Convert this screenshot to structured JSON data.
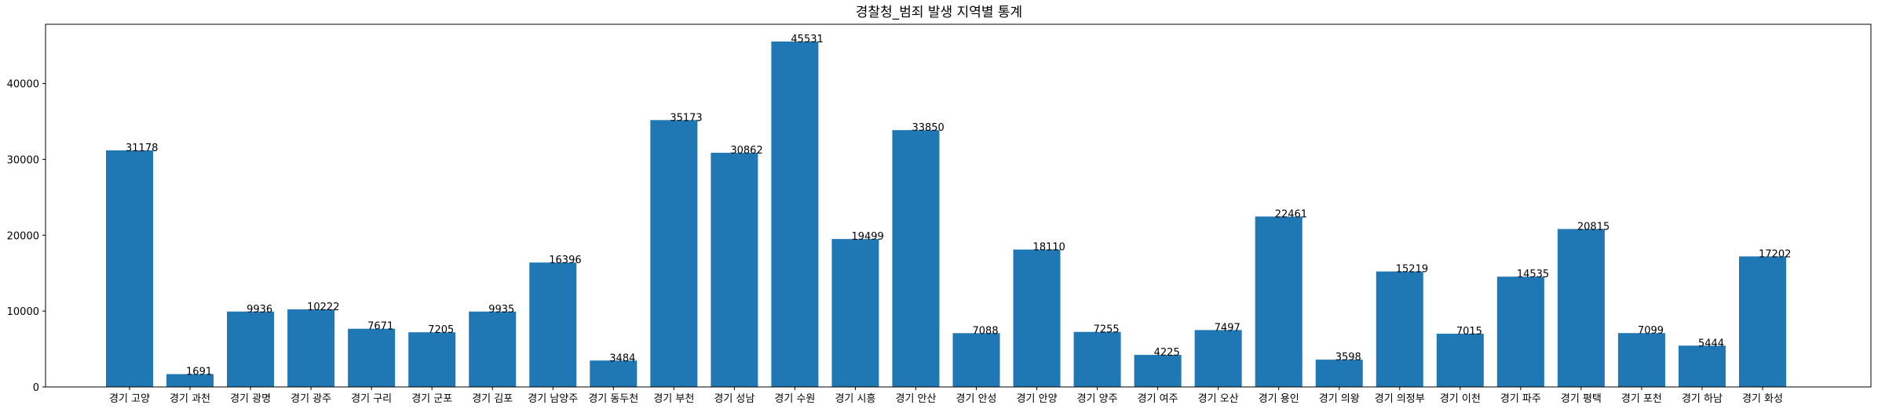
{
  "chart_data": {
    "type": "bar",
    "title": "경찰청_범죄 발생 지역별 통계",
    "xlabel": "",
    "ylabel": "",
    "ylim": [
      0,
      47800
    ],
    "yticks": [
      0,
      10000,
      20000,
      30000,
      40000
    ],
    "grid": false,
    "bar_color": "#1f77b4",
    "categories": [
      "경기 고양",
      "경기 과천",
      "경기 광명",
      "경기 광주",
      "경기 구리",
      "경기 군포",
      "경기 김포",
      "경기 남양주",
      "경기 동두천",
      "경기 부천",
      "경기 성남",
      "경기 수원",
      "경기 시흥",
      "경기 안산",
      "경기 안성",
      "경기 안양",
      "경기 양주",
      "경기 여주",
      "경기 오산",
      "경기 용인",
      "경기 의왕",
      "경기 의정부",
      "경기 이천",
      "경기 파주",
      "경기 평택",
      "경기 포천",
      "경기 하남",
      "경기 화성"
    ],
    "values": [
      31178,
      1691,
      9936,
      10222,
      7671,
      7205,
      9935,
      16396,
      3484,
      35173,
      30862,
      45531,
      19499,
      33850,
      7088,
      18110,
      7255,
      4225,
      7497,
      22461,
      3598,
      15219,
      7015,
      14535,
      20815,
      7099,
      5444,
      17202
    ]
  }
}
